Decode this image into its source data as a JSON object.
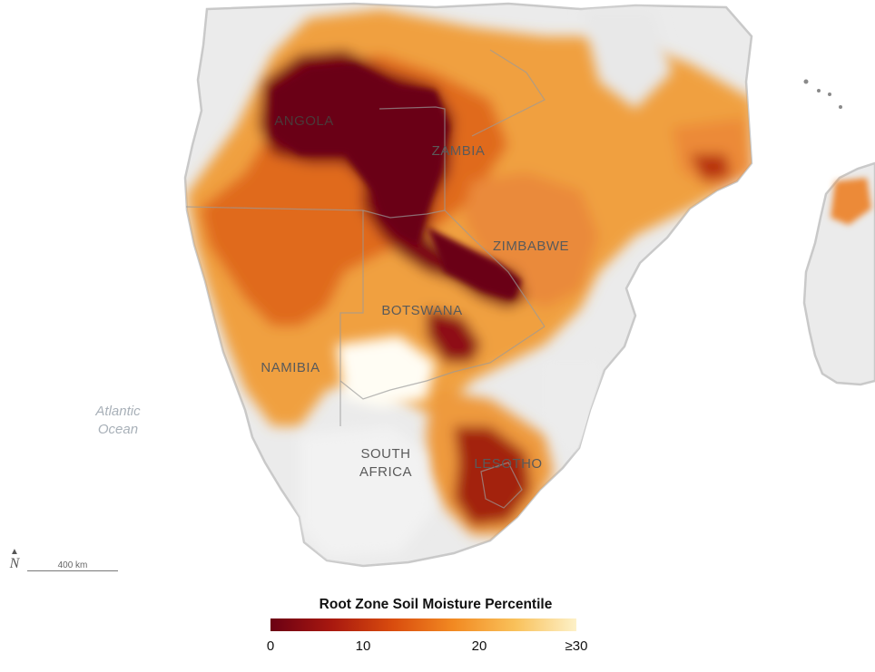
{
  "map": {
    "country_labels": [
      {
        "key": "angola",
        "text": "ANGOLA"
      },
      {
        "key": "zambia",
        "text": "ZAMBIA"
      },
      {
        "key": "zimbabwe",
        "text": "ZIMBABWE"
      },
      {
        "key": "botswana",
        "text": "BOTSWANA"
      },
      {
        "key": "namibia",
        "text": "NAMIBIA"
      },
      {
        "key": "south_africa",
        "text": "SOUTH\nAFRICA"
      },
      {
        "key": "lesotho",
        "text": "LESOTHO"
      }
    ],
    "ocean_label": "Atlantic\nOcean",
    "north_symbol": "N",
    "scale_label": "400 km"
  },
  "legend": {
    "title": "Root Zone Soil Moisture Percentile",
    "ticks": [
      "0",
      "10",
      "20",
      "≥30"
    ],
    "colors": [
      "#6b0014",
      "#a8180f",
      "#d94c0e",
      "#f28a22",
      "#f9c15a",
      "#fdf1c8"
    ]
  },
  "colors": {
    "land": "#eaeaea",
    "land_edge": "#c9c9c9",
    "ocean": "#ffffff"
  }
}
